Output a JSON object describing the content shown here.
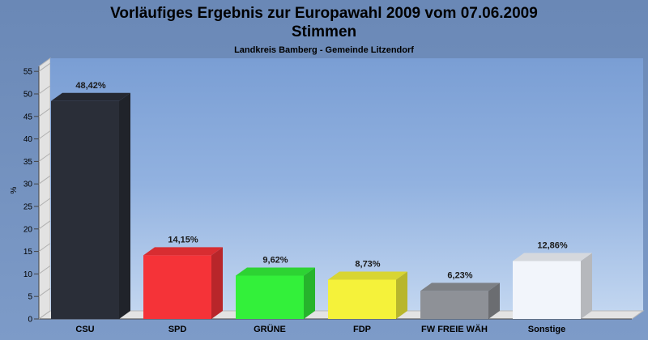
{
  "chart_data": {
    "type": "bar",
    "title": "Vorläufiges Ergebnis zur Europawahl 2009 vom 07.06.2009",
    "subtitle": "Stimmen",
    "caption": "Landkreis Bamberg - Gemeinde Litzendorf",
    "ylabel": "%",
    "xlabel": "",
    "ylim": [
      0,
      55
    ],
    "yticks": [
      "0",
      "5",
      "10",
      "15",
      "20",
      "25",
      "30",
      "35",
      "40",
      "45",
      "50",
      "55"
    ],
    "grid": false,
    "legend": "none",
    "categories": [
      "CSU",
      "SPD",
      "GRÜNE",
      "FDP",
      "FW FREIE WÄH",
      "Sonstige"
    ],
    "values": [
      48.42,
      14.15,
      9.62,
      8.73,
      6.23,
      12.86
    ],
    "value_labels": [
      "48,42%",
      "14,15%",
      "9,62%",
      "8,73%",
      "6,23%",
      "12,86%"
    ],
    "colors": [
      "#2a2e38",
      "#f53338",
      "#33f03a",
      "#f5f23a",
      "#8e9197",
      "#f2f5fb"
    ]
  }
}
